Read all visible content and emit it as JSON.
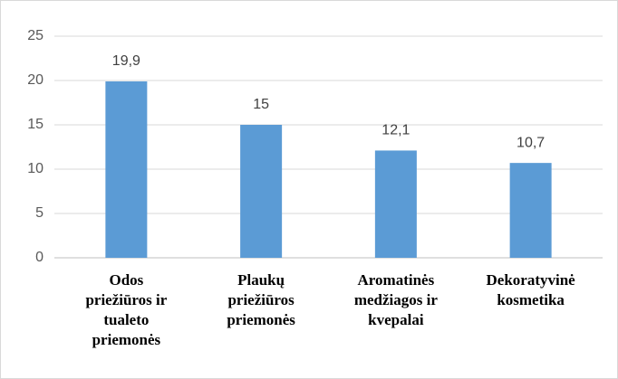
{
  "chart_data": {
    "type": "bar",
    "categories": [
      "Odos priežiūros ir tualeto priemonės",
      "Plaukų priežiūros priemonės",
      "Aromatinės medžiagos ir kvepalai",
      "Dekoratyvinė kosmetika"
    ],
    "values": [
      19.9,
      15,
      12.1,
      10.7
    ],
    "value_labels": [
      "19,9",
      "15",
      "12,1",
      "10,7"
    ],
    "color": "#5b9bd5",
    "ylim": [
      0,
      25
    ],
    "yticks": [
      0,
      5,
      10,
      15,
      20,
      25
    ],
    "grid": true
  }
}
